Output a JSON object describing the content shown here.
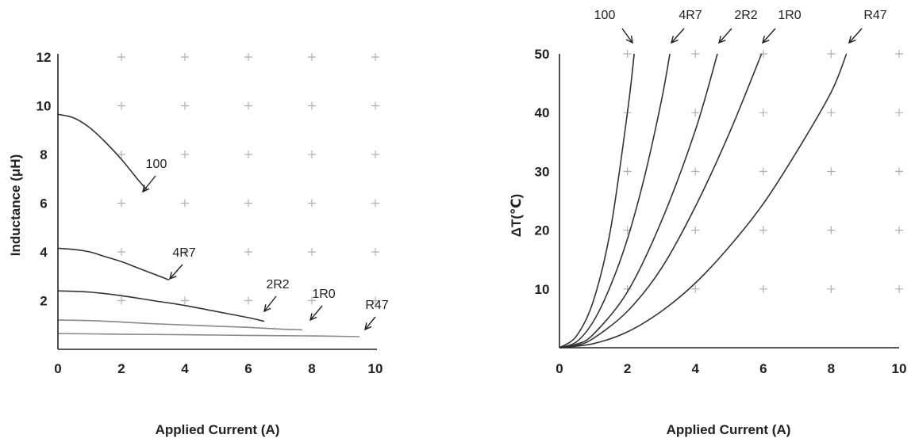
{
  "chart_data": [
    {
      "type": "line",
      "xlabel": "Applied Current (A)",
      "ylabel": "Inductance (μH)",
      "xlim": [
        0,
        10
      ],
      "ylim": [
        0,
        12
      ],
      "x_ticks": [
        "0",
        "2",
        "4",
        "6",
        "8",
        "10"
      ],
      "y_ticks": [
        "2",
        "4",
        "6",
        "8",
        "10",
        "12"
      ],
      "grid": "plus-markers",
      "series": [
        {
          "name": "100",
          "color": "#333333",
          "x": [
            0,
            0.5,
            1,
            1.5,
            2,
            2.5,
            2.8
          ],
          "y": [
            9.65,
            9.5,
            9.1,
            8.5,
            7.8,
            7.0,
            6.55
          ]
        },
        {
          "name": "4R7",
          "color": "#333333",
          "x": [
            0,
            0.5,
            1,
            1.5,
            2,
            2.5,
            3,
            3.5
          ],
          "y": [
            4.15,
            4.1,
            4.0,
            3.8,
            3.6,
            3.35,
            3.1,
            2.85
          ]
        },
        {
          "name": "2R2",
          "color": "#333333",
          "x": [
            0,
            1,
            2,
            3,
            4,
            5,
            6,
            6.5
          ],
          "y": [
            2.4,
            2.35,
            2.2,
            2.0,
            1.8,
            1.55,
            1.3,
            1.15
          ]
        },
        {
          "name": "1R0",
          "color": "#888888",
          "x": [
            0,
            1,
            2,
            3,
            4,
            5,
            6,
            7,
            7.7
          ],
          "y": [
            1.2,
            1.18,
            1.12,
            1.05,
            1.0,
            0.95,
            0.9,
            0.83,
            0.8
          ]
        },
        {
          "name": "R47",
          "color": "#888888",
          "x": [
            0,
            2,
            4,
            6,
            8,
            9.5
          ],
          "y": [
            0.65,
            0.62,
            0.6,
            0.57,
            0.55,
            0.52
          ]
        }
      ]
    },
    {
      "type": "line",
      "xlabel": "Applied Current (A)",
      "ylabel": "ΔT(℃)",
      "xlim": [
        0,
        10
      ],
      "ylim": [
        0,
        50
      ],
      "x_ticks": [
        "0",
        "2",
        "4",
        "6",
        "8",
        "10"
      ],
      "y_ticks": [
        "10",
        "20",
        "30",
        "40",
        "50"
      ],
      "grid": "plus-markers",
      "series": [
        {
          "name": "100",
          "color": "#333333",
          "x": [
            0,
            0.5,
            1,
            1.5,
            2,
            2.2
          ],
          "y": [
            0,
            2,
            8,
            20,
            40,
            50
          ]
        },
        {
          "name": "4R7",
          "color": "#333333",
          "x": [
            0,
            0.5,
            1,
            1.5,
            2,
            2.5,
            3,
            3.25
          ],
          "y": [
            0,
            1,
            4.5,
            10.5,
            18.5,
            29,
            42,
            50
          ]
        },
        {
          "name": "2R2",
          "color": "#333333",
          "x": [
            0,
            0.5,
            1,
            2,
            3,
            4,
            4.65
          ],
          "y": [
            0,
            0.6,
            2.3,
            9.5,
            21.5,
            37,
            50
          ]
        },
        {
          "name": "1R0",
          "color": "#333333",
          "x": [
            0,
            0.5,
            1,
            2,
            3,
            4,
            5,
            5.95
          ],
          "y": [
            0,
            0.4,
            1.6,
            6.2,
            13.5,
            24,
            36.5,
            50
          ]
        },
        {
          "name": "R47",
          "color": "#333333",
          "x": [
            0,
            1,
            2,
            3,
            4,
            5,
            6,
            7,
            8,
            8.45
          ],
          "y": [
            0,
            0.7,
            2.7,
            6.2,
            11,
            17.2,
            24.5,
            33.5,
            43.5,
            50
          ]
        }
      ]
    }
  ]
}
